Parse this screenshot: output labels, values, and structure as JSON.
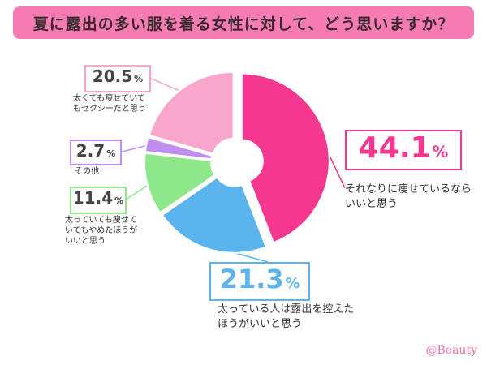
{
  "chart_data": {
    "type": "pie",
    "title": "夏に露出の多い服を着る女性に対して、どう思いますか？",
    "unit": "%",
    "slices": [
      {
        "label": "それなりに痩せているならいいと思う",
        "value": 44.1,
        "color": "#f5378f",
        "value_text": "44.1"
      },
      {
        "label": "太っている人は露出を控えたほうがいいと思う",
        "value": 21.3,
        "color": "#5bb4ee",
        "value_text": "21.3"
      },
      {
        "label": "太っていても痩せていてもやめたほうがいいと思う",
        "value": 11.4,
        "color": "#8ee88a",
        "value_text": "11.4"
      },
      {
        "label": "その他",
        "value": 2.7,
        "color": "#bf8ef0",
        "value_text": "2.7"
      },
      {
        "label": "太くても痩せていてもセクシーだと思う",
        "value": 20.5,
        "color": "#f8a6cb",
        "value_text": "20.5"
      }
    ],
    "donut": true,
    "start": "top",
    "direction": "clockwise"
  },
  "credit": "@Beauty"
}
